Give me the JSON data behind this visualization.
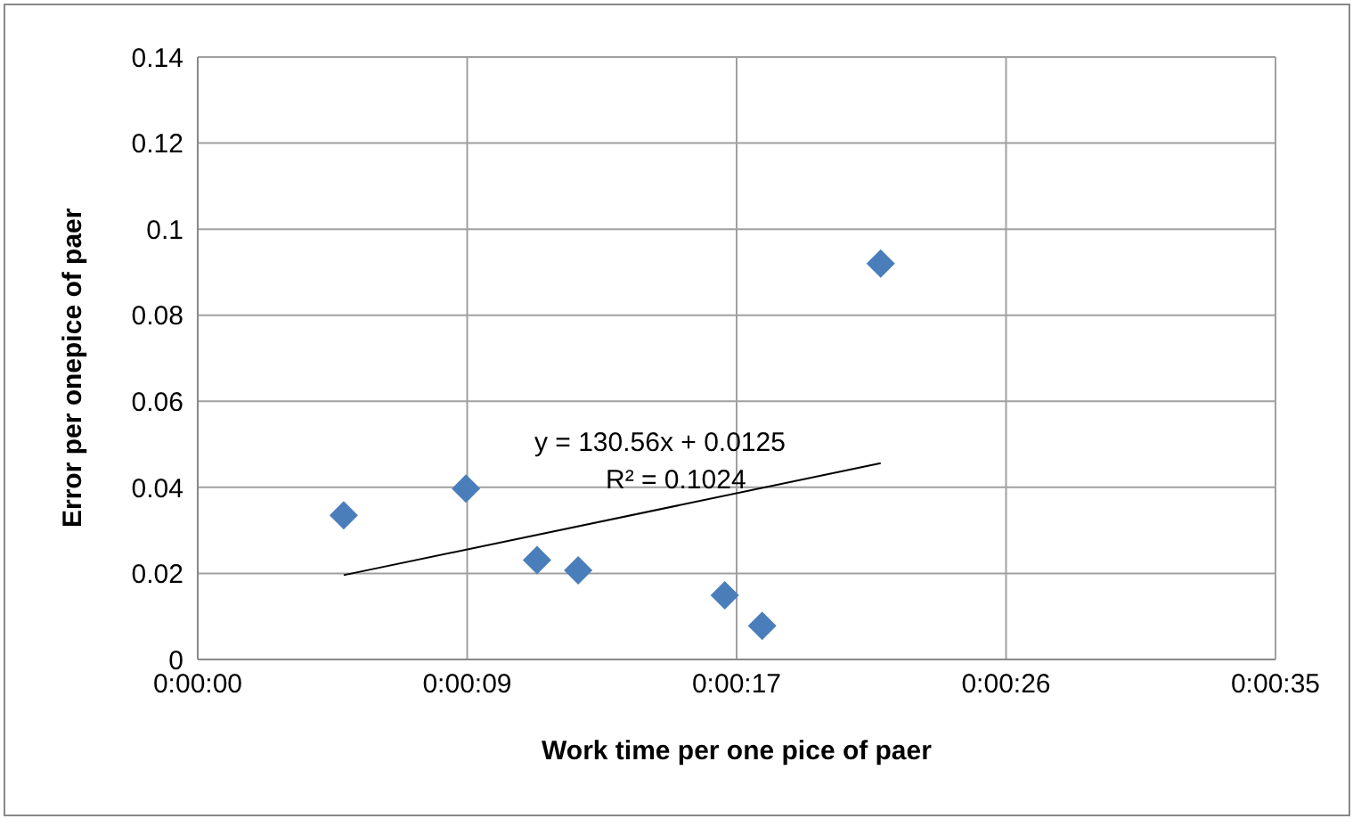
{
  "chart_data": {
    "type": "scatter",
    "xlabel": "Work time per one pice of paer",
    "ylabel": "Error per onepice of paer",
    "xlim": [
      0,
      34.56
    ],
    "xticks": [
      {
        "value": 0,
        "label": "0:00:00"
      },
      {
        "value": 8.64,
        "label": "0:00:09"
      },
      {
        "value": 17.28,
        "label": "0:00:17"
      },
      {
        "value": 25.92,
        "label": "0:00:26"
      },
      {
        "value": 34.56,
        "label": "0:00:35"
      }
    ],
    "ylim": [
      0,
      0.14
    ],
    "yticks": [
      0,
      0.02,
      0.04,
      0.06,
      0.08,
      0.1,
      0.12,
      0.14
    ],
    "grid": true,
    "legend": false,
    "series": [
      {
        "color": "#4a7ebb",
        "marker": "diamond",
        "x": [
          4.68,
          8.6,
          10.88,
          12.2,
          16.9,
          18.1,
          21.9
        ],
        "values": [
          0.0335,
          0.0397,
          0.0231,
          0.0207,
          0.0149,
          0.0078,
          0.092
        ]
      },
      {
        "type": "line",
        "color": "#000000",
        "marker": "none",
        "x": [
          4.68,
          21.9
        ],
        "values": [
          0.0196,
          0.0456
        ]
      }
    ],
    "annotations": [
      "y = 130.56x + 0.0125",
      "R² = 0.1024"
    ]
  }
}
